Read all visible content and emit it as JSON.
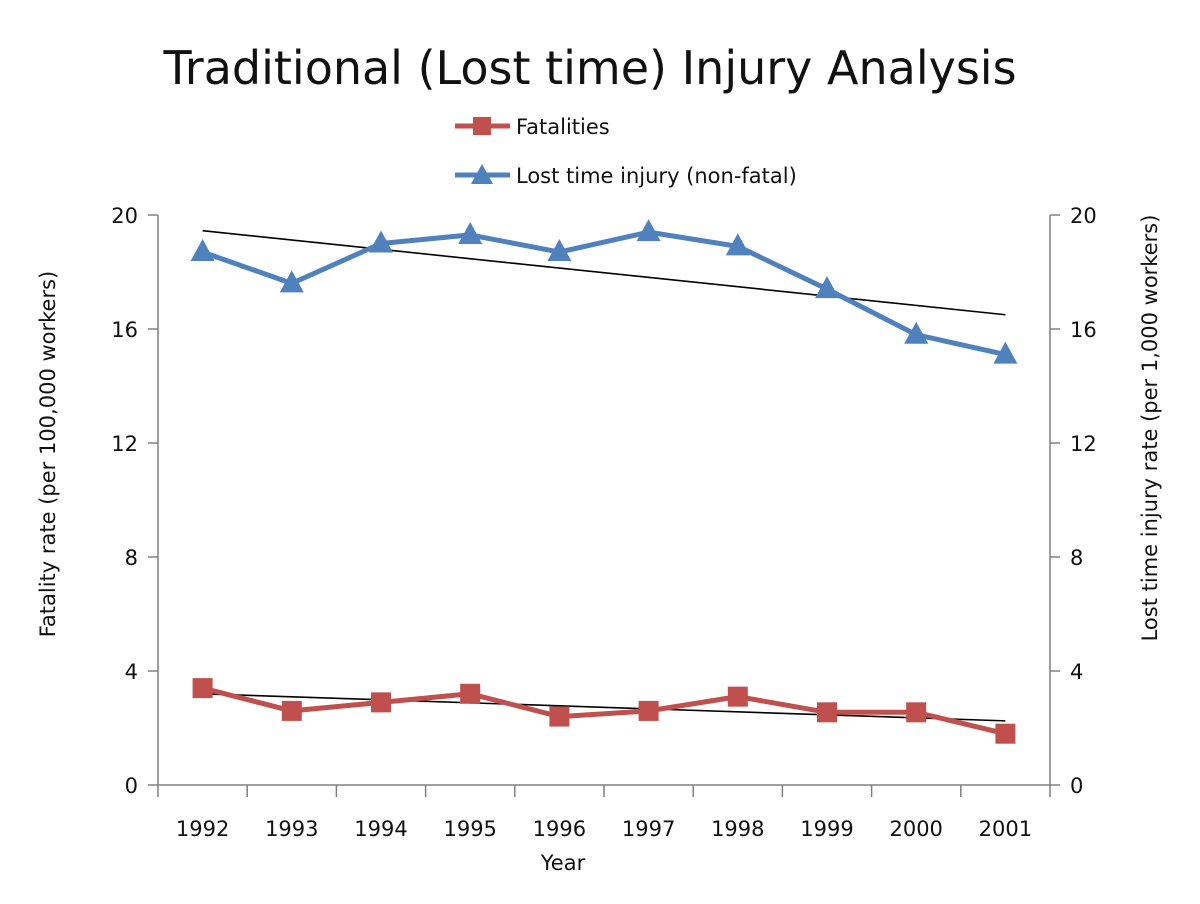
{
  "chart_data": {
    "type": "line",
    "title": "Traditional (Lost time) Injury Analysis",
    "xlabel": "Year",
    "ylabel_left": "Fatality rate  (per 100,000 workers)",
    "ylabel_right": "Lost time injury  rate  (per  1,000  workers)",
    "x": [
      "1992",
      "1993",
      "1994",
      "1995",
      "1996",
      "1997",
      "1998",
      "1999",
      "2000",
      "2001"
    ],
    "ylim_left": [
      0,
      20
    ],
    "ylim_right": [
      0,
      20
    ],
    "yticks_left": [
      "0",
      "4",
      "8",
      "12",
      "16",
      "20"
    ],
    "yticks_right": [
      "0",
      "4",
      "8",
      "12",
      "16",
      "20"
    ],
    "grid": false,
    "legend_position": "top-center",
    "series": [
      {
        "name": "Fatalities",
        "axis": "left",
        "color": "#c0504d",
        "marker": "square",
        "values": [
          3.4,
          2.6,
          2.9,
          3.2,
          2.4,
          2.6,
          3.1,
          2.55,
          2.55,
          1.8
        ],
        "trendline": {
          "start": 3.2,
          "end": 2.25,
          "color": "#000000"
        }
      },
      {
        "name": "Lost time injury  (non-fatal)",
        "axis": "right",
        "color": "#4f81bd",
        "marker": "triangle",
        "values": [
          18.7,
          17.6,
          19.0,
          19.3,
          18.7,
          19.4,
          18.9,
          17.4,
          15.8,
          15.1
        ],
        "trendline": {
          "start": 19.45,
          "end": 16.5,
          "color": "#000000"
        }
      }
    ]
  }
}
